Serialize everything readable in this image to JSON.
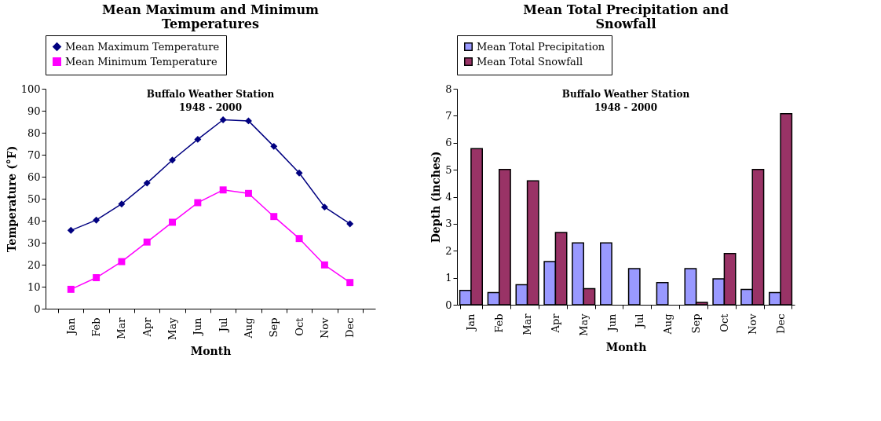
{
  "chart_data": [
    {
      "type": "line",
      "title": "Mean Maximum and Minimum Temperatures",
      "subtitle": "Buffalo Weather Station\n1948 - 2000",
      "xlabel": "Month",
      "ylabel": "Temperature (°F)",
      "categories": [
        "Jan",
        "Feb",
        "Mar",
        "Apr",
        "May",
        "Jun",
        "Jul",
        "Aug",
        "Sep",
        "Oct",
        "Nov",
        "Dec"
      ],
      "series": [
        {
          "name": "Mean Maximum Temperature",
          "color": "#000080",
          "marker": "diamond",
          "values": [
            35.6,
            40.3,
            47.6,
            57.1,
            67.6,
            77,
            85.9,
            85.4,
            73.8,
            61.7,
            46.2,
            38.6
          ]
        },
        {
          "name": "Mean Minimum Temperature",
          "color": "#ff00ff",
          "marker": "square",
          "values": [
            8.8,
            14.1,
            21.4,
            30.3,
            39.3,
            48.2,
            54,
            52.4,
            41.9,
            31.9,
            19.9,
            11.9
          ]
        }
      ],
      "ylim": [
        0,
        100
      ],
      "yticks": [
        0,
        10,
        20,
        30,
        40,
        50,
        60,
        70,
        80,
        90,
        100
      ],
      "grid": false,
      "legend": "top"
    },
    {
      "type": "bar",
      "title": "Mean Total Precipitation and Snowfall",
      "subtitle": "Buffalo Weather Station\n1948 - 2000",
      "xlabel": "Month",
      "ylabel": "Depth (inches)",
      "categories": [
        "Jan",
        "Feb",
        "Mar",
        "Apr",
        "May",
        "Jun",
        "Jul",
        "Aug",
        "Sep",
        "Oct",
        "Nov",
        "Dec"
      ],
      "series": [
        {
          "name": "Mean Total Precipitation",
          "color": "#9999ff",
          "values": [
            0.53,
            0.45,
            0.74,
            1.6,
            2.29,
            2.29,
            1.34,
            0.82,
            1.34,
            0.96,
            0.57,
            0.45
          ]
        },
        {
          "name": "Mean Total Snowfall",
          "color": "#993366",
          "values": [
            5.78,
            5.01,
            4.59,
            2.68,
            0.6,
            0,
            0,
            0,
            0.09,
            1.9,
            5.01,
            7.08
          ]
        }
      ],
      "ylim": [
        0,
        8
      ],
      "yticks": [
        0,
        1,
        2,
        3,
        4,
        5,
        6,
        7,
        8
      ],
      "grid": false,
      "legend": "top"
    }
  ]
}
